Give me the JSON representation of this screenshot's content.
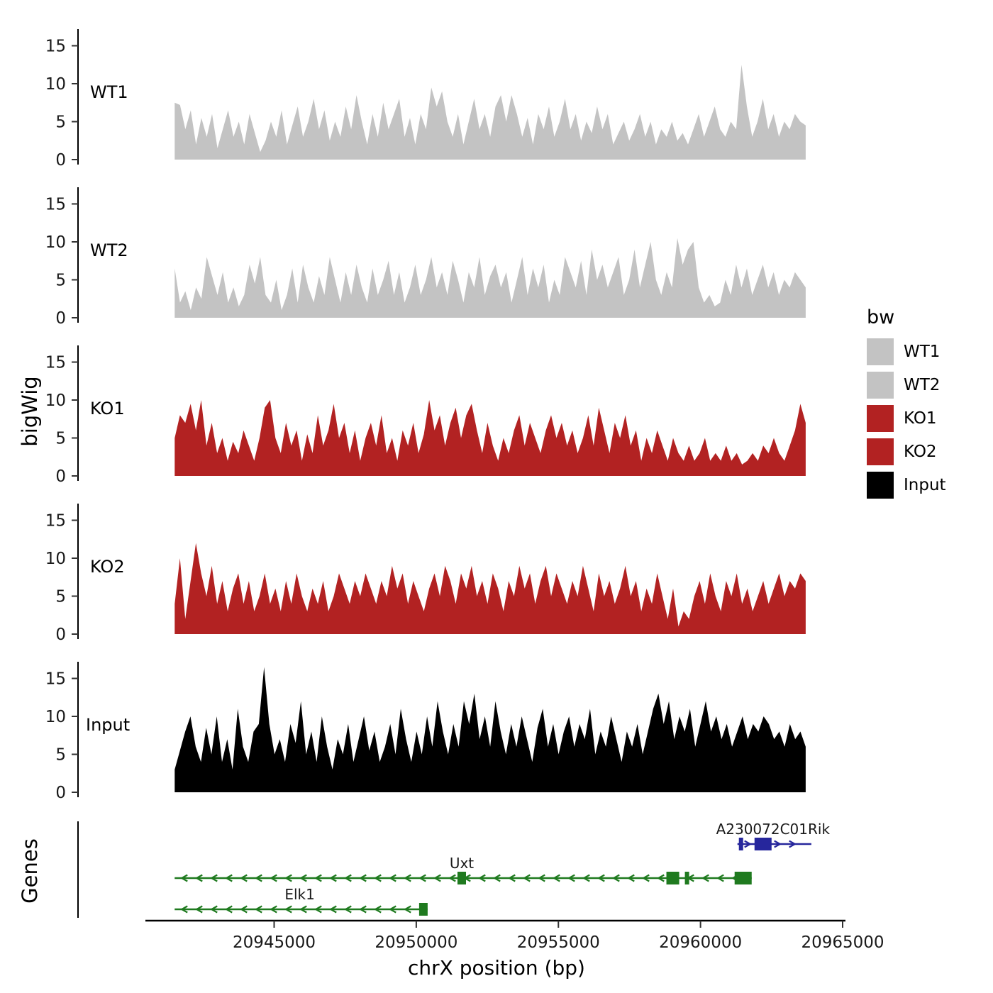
{
  "figure": {
    "y_axis_title": "bigWig",
    "genes_axis_title": "Genes",
    "x_axis_title": "chrX position (bp)"
  },
  "legend": {
    "title": "bw",
    "entries": [
      {
        "label": "WT1",
        "color": "#C3C3C3"
      },
      {
        "label": "WT2",
        "color": "#C3C3C3"
      },
      {
        "label": "KO1",
        "color": "#B22222"
      },
      {
        "label": "KO2",
        "color": "#B22222"
      },
      {
        "label": "Input",
        "color": "#000000"
      }
    ]
  },
  "chart_data": {
    "type": "area",
    "title": "",
    "xlabel": "chrX position (bp)",
    "ylabel": "bigWig",
    "chromosome": "chrX",
    "x_domain": [
      20938100,
      20965100
    ],
    "data_range": [
      20941500,
      20963700
    ],
    "x_ticks": [
      20945000,
      20950000,
      20955000,
      20960000,
      20965000
    ],
    "y_ticks": [
      0,
      5,
      10,
      15
    ],
    "y_max": 17,
    "tracks": [
      {
        "name": "WT1",
        "color": "#C3C3C3",
        "values": [
          7.5,
          7.2,
          4,
          6.5,
          2,
          5.5,
          3,
          6,
          1.5,
          4,
          6.5,
          3,
          5,
          2,
          6,
          3.5,
          1,
          2.5,
          5,
          3,
          6.5,
          2,
          4.5,
          7,
          3,
          5,
          8,
          4,
          6.5,
          2.5,
          5,
          3,
          7,
          4,
          8.5,
          5,
          2,
          6,
          3,
          7.5,
          4,
          6,
          8,
          3,
          5.5,
          2,
          6,
          4,
          9.5,
          7,
          9,
          5,
          3,
          6,
          2,
          5,
          8,
          4,
          6,
          3,
          7,
          8.5,
          5,
          8.5,
          6,
          3,
          5.5,
          2,
          6,
          4,
          7,
          3,
          5,
          8,
          4,
          6,
          2.5,
          5,
          3.5,
          7,
          4,
          6,
          2,
          3.5,
          5,
          2.5,
          4,
          6,
          3,
          5,
          2,
          4,
          3,
          5,
          2.5,
          3.5,
          2,
          4,
          6,
          3,
          5,
          7,
          4,
          3,
          5,
          4,
          12.5,
          7,
          3,
          5,
          8,
          4,
          6,
          3,
          5,
          4,
          6,
          5,
          4.5
        ]
      },
      {
        "name": "WT2",
        "color": "#C3C3C3",
        "values": [
          6.5,
          2,
          3.5,
          1,
          4,
          2.5,
          8,
          5.5,
          3,
          6,
          2,
          4,
          1.5,
          3,
          7,
          4.5,
          8,
          3,
          2,
          5,
          1,
          3,
          6.5,
          2,
          7,
          4,
          2,
          5.5,
          3,
          8,
          5,
          2,
          6,
          3,
          7,
          4,
          2,
          6.5,
          3,
          5,
          7.5,
          3,
          6,
          2,
          4,
          7,
          3,
          5,
          8,
          4,
          6,
          3,
          7.5,
          5,
          2,
          6,
          4,
          8,
          3,
          5.5,
          7,
          4,
          6,
          2,
          5,
          8,
          3,
          6.5,
          4,
          7,
          2,
          5,
          3,
          8,
          6,
          4,
          7.5,
          3,
          9,
          5,
          7,
          4,
          6,
          8,
          3,
          5,
          9,
          4,
          7,
          10,
          5,
          3,
          6,
          4,
          10.5,
          7,
          9,
          10,
          4,
          2,
          3,
          1.5,
          2,
          5,
          3,
          7,
          4,
          6.5,
          3,
          5,
          7,
          4,
          6,
          3,
          5,
          4,
          6,
          5,
          4
        ]
      },
      {
        "name": "KO1",
        "color": "#B22222",
        "values": [
          5,
          8,
          7,
          9.5,
          6,
          10,
          4,
          7,
          3,
          5,
          2,
          4.5,
          3,
          6,
          4,
          2,
          5,
          9,
          10,
          5,
          3,
          7,
          4,
          6,
          2,
          5.5,
          3,
          8,
          4,
          6,
          9.5,
          5,
          7,
          3,
          6,
          2,
          5,
          7,
          4,
          8,
          3,
          5,
          2,
          6,
          4,
          7,
          3,
          5.5,
          10,
          6,
          8,
          4,
          7,
          9,
          5,
          8,
          9.5,
          6,
          3,
          7,
          4,
          2,
          5,
          3,
          6,
          8,
          4,
          7,
          5,
          3,
          6,
          8,
          5,
          7,
          4,
          6,
          3,
          5,
          8,
          4,
          9,
          6,
          3,
          7,
          5,
          8,
          4,
          6,
          2,
          5,
          3,
          6,
          4,
          2,
          5,
          3,
          2,
          4,
          2,
          3,
          5,
          2,
          3,
          2,
          4,
          2,
          3,
          1.5,
          2,
          3,
          2,
          4,
          3,
          5,
          3,
          2,
          4,
          6,
          9.5,
          7
        ]
      },
      {
        "name": "KO2",
        "color": "#B22222",
        "values": [
          4,
          10,
          2,
          7,
          12,
          8,
          5,
          9,
          4,
          7,
          3,
          6,
          8,
          4,
          7,
          3,
          5,
          8,
          4,
          6,
          3,
          7,
          4,
          8,
          5,
          3,
          6,
          4,
          7,
          3,
          5,
          8,
          6,
          4,
          7,
          5,
          8,
          6,
          4,
          7,
          5,
          9,
          6,
          8,
          4,
          7,
          5,
          3,
          6,
          8,
          5,
          9,
          7,
          4,
          8,
          6,
          9,
          5,
          7,
          4,
          8,
          6,
          3,
          7,
          5,
          9,
          6,
          8,
          4,
          7,
          9,
          5,
          8,
          6,
          4,
          7,
          5,
          9,
          6,
          3,
          8,
          5,
          7,
          4,
          6,
          9,
          5,
          7,
          3,
          6,
          4,
          8,
          5,
          2,
          6,
          1,
          3,
          2,
          5,
          7,
          4,
          8,
          5,
          3,
          7,
          5,
          8,
          4,
          6,
          3,
          5,
          7,
          4,
          6,
          8,
          5,
          7,
          6,
          8,
          7
        ]
      },
      {
        "name": "Input",
        "color": "#000000",
        "values": [
          3,
          5.5,
          8,
          10,
          6,
          4,
          8.5,
          5,
          10,
          4,
          7,
          3,
          11,
          6,
          4,
          8,
          9,
          16.5,
          9,
          5,
          7,
          4,
          9,
          6.5,
          12,
          5,
          8,
          4,
          10,
          6,
          3,
          7,
          5,
          9,
          4,
          7,
          10,
          5.5,
          8,
          4,
          6,
          9,
          5,
          11,
          7,
          4,
          8,
          5,
          10,
          6,
          12,
          8,
          5,
          9,
          6,
          12,
          9,
          13,
          7,
          10,
          6,
          12,
          8,
          5,
          9,
          6,
          10,
          7,
          4,
          8.5,
          11,
          6,
          9,
          5,
          8,
          10,
          6,
          9,
          7,
          11,
          5,
          8,
          6,
          10,
          7,
          4,
          8,
          6,
          9,
          5,
          8,
          11,
          13,
          9,
          12,
          7,
          10,
          8,
          11,
          6,
          9,
          12,
          8,
          10,
          7,
          9,
          6,
          8,
          10,
          7,
          9,
          8,
          10,
          9,
          7,
          8,
          6,
          9,
          7,
          8,
          6
        ]
      }
    ],
    "genes": [
      {
        "name": "A230072C01Rik",
        "strand": "+",
        "color": "#26269C",
        "start": 20961300,
        "end": 20963900,
        "y": 38,
        "label_bp": 20962550,
        "exons": [
          [
            20961350,
            20961500
          ],
          [
            20961900,
            20962500
          ]
        ]
      },
      {
        "name": "Uxt",
        "strand": "-",
        "color": "#1F7A1F",
        "start": 20941500,
        "end": 20961800,
        "y": 86,
        "label_bp": 20951600,
        "exons": [
          [
            20951450,
            20951750
          ],
          [
            20958800,
            20959250
          ],
          [
            20959450,
            20959600
          ],
          [
            20961200,
            20961800
          ]
        ]
      },
      {
        "name": "Elk1",
        "strand": "-",
        "color": "#1F7A1F",
        "start": 20941500,
        "end": 20950400,
        "y": 130,
        "label_bp": 20945900,
        "exons": [
          [
            20950100,
            20950400
          ]
        ]
      }
    ]
  }
}
